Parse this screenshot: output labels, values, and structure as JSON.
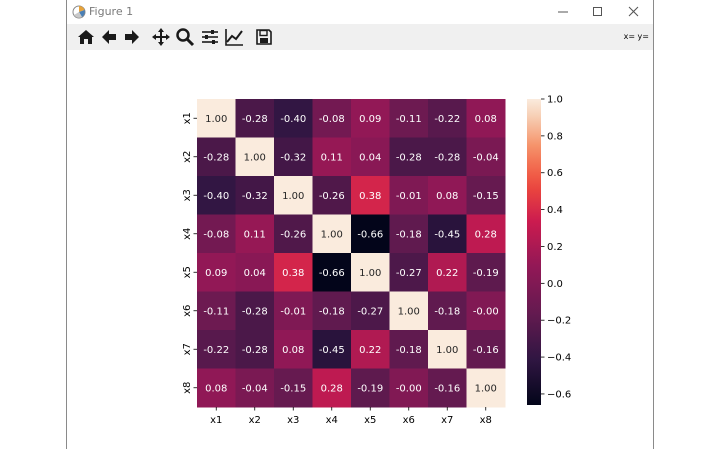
{
  "window": {
    "title": "Figure 1"
  },
  "toolbar": {
    "buttons": [
      "home-icon",
      "back-icon",
      "forward-icon",
      "pan-icon",
      "zoom-icon",
      "configure-subplots-icon",
      "edit-axis-icon",
      "save-icon"
    ],
    "coords": "x= y="
  },
  "chart_data": {
    "type": "heatmap",
    "x_labels": [
      "x1",
      "x2",
      "x3",
      "x4",
      "x5",
      "x6",
      "x7",
      "x8"
    ],
    "y_labels": [
      "x1",
      "x2",
      "x3",
      "x4",
      "x5",
      "x6",
      "x7",
      "x8"
    ],
    "values": [
      [
        1.0,
        -0.28,
        -0.4,
        -0.08,
        0.09,
        -0.11,
        -0.22,
        0.08
      ],
      [
        -0.28,
        1.0,
        -0.32,
        0.11,
        0.04,
        -0.28,
        -0.28,
        -0.04
      ],
      [
        -0.4,
        -0.32,
        1.0,
        -0.26,
        0.38,
        -0.01,
        0.08,
        -0.15
      ],
      [
        -0.08,
        0.11,
        -0.26,
        1.0,
        -0.66,
        -0.18,
        -0.45,
        0.28
      ],
      [
        0.09,
        0.04,
        0.38,
        -0.66,
        1.0,
        -0.27,
        0.22,
        -0.19
      ],
      [
        -0.11,
        -0.28,
        -0.01,
        -0.18,
        -0.27,
        1.0,
        -0.18,
        -0.0
      ],
      [
        -0.22,
        -0.28,
        0.08,
        -0.45,
        0.22,
        -0.18,
        1.0,
        -0.16
      ],
      [
        0.08,
        -0.04,
        -0.15,
        0.28,
        -0.19,
        -0.0,
        -0.16,
        1.0
      ]
    ],
    "value_labels": [
      [
        "1.00",
        "-0.28",
        "-0.40",
        "-0.08",
        "0.09",
        "-0.11",
        "-0.22",
        "0.08"
      ],
      [
        "-0.28",
        "1.00",
        "-0.32",
        "0.11",
        "0.04",
        "-0.28",
        "-0.28",
        "-0.04"
      ],
      [
        "-0.40",
        "-0.32",
        "1.00",
        "-0.26",
        "0.38",
        "-0.01",
        "0.08",
        "-0.15"
      ],
      [
        "-0.08",
        "0.11",
        "-0.26",
        "1.00",
        "-0.66",
        "-0.18",
        "-0.45",
        "0.28"
      ],
      [
        "0.09",
        "0.04",
        "0.38",
        "-0.66",
        "1.00",
        "-0.27",
        "0.22",
        "-0.19"
      ],
      [
        "-0.11",
        "-0.28",
        "-0.01",
        "-0.18",
        "-0.27",
        "1.00",
        "-0.18",
        "-0.00"
      ],
      [
        "-0.22",
        "-0.28",
        "0.08",
        "-0.45",
        "0.22",
        "-0.18",
        "1.00",
        "-0.16"
      ],
      [
        "0.08",
        "-0.04",
        "-0.15",
        "0.28",
        "-0.19",
        "-0.00",
        "-0.16",
        "1.00"
      ]
    ],
    "colorbar": {
      "range": [
        -0.66,
        1.0
      ],
      "ticks": [
        1.0,
        0.8,
        0.6,
        0.4,
        0.2,
        0.0,
        -0.2,
        -0.4,
        -0.6
      ],
      "tick_labels": [
        "1.0",
        "0.8",
        "0.6",
        "0.4",
        "0.2",
        "0.0",
        "−0.2",
        "−0.4",
        "−0.6"
      ],
      "colormap": "rocket"
    }
  }
}
